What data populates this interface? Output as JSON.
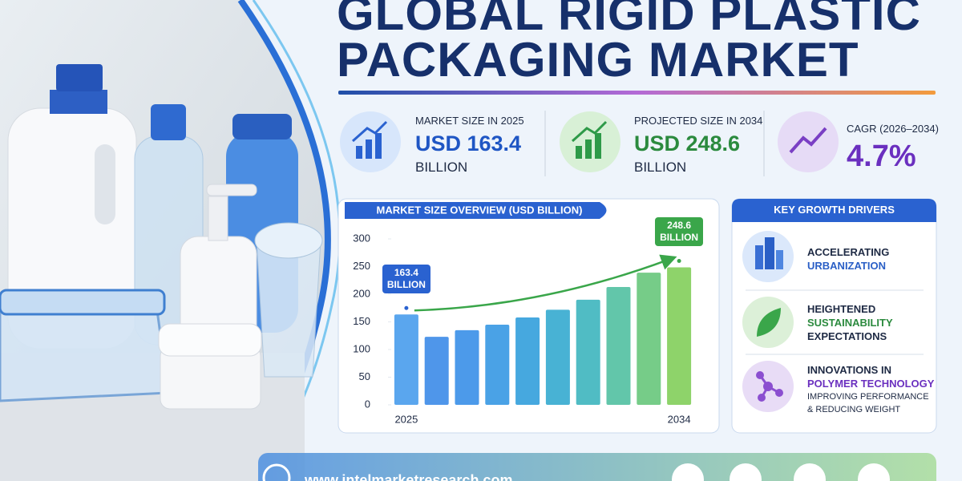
{
  "header": {
    "title_line_1": "GLOBAL RIGID PLASTIC",
    "title_line_2": "PACKAGING MARKET"
  },
  "stats": [
    {
      "label": "MARKET SIZE IN 2025",
      "value": "USD 163.4",
      "unit": "BILLION"
    },
    {
      "label": "PROJECTED SIZE IN 2034",
      "value": "USD 248.6",
      "unit": "BILLION"
    },
    {
      "label": "CAGR (2026–2034)",
      "value": "4.7%"
    }
  ],
  "chart_data": {
    "type": "bar",
    "title": "MARKET SIZE OVERVIEW (USD BILLION)",
    "categories": [
      "2025",
      null,
      null,
      null,
      null,
      null,
      null,
      null,
      null,
      "2034"
    ],
    "values": [
      163.4,
      123,
      135,
      145,
      158,
      172,
      190,
      213,
      239,
      248.6
    ],
    "value_labels": [
      "163.4 BILLION",
      null,
      null,
      null,
      null,
      null,
      null,
      null,
      null,
      "248.6 BILLION"
    ],
    "colors": [
      "#5aa6ee",
      "#4f96ea",
      "#4c9aea",
      "#4aa2e6",
      "#46a8df",
      "#48b2d4",
      "#50bcc4",
      "#62c6aa",
      "#76cc88",
      "#8ed36a"
    ],
    "ylim": [
      0,
      300
    ],
    "yticks": [
      0,
      50,
      100,
      150,
      200,
      250,
      300
    ],
    "grid": false
  },
  "drivers": {
    "title": "KEY GROWTH DRIVERS",
    "items": [
      {
        "line_1": "ACCELERATING",
        "line_2": "URBANIZATION"
      },
      {
        "line_1": "HEIGHTENED",
        "line_2": "SUSTAINABILITY",
        "line_3": "EXPECTATIONS"
      },
      {
        "line_1": "INNOVATIONS IN",
        "line_2": "POLYMER TECHNOLOGY",
        "line_3": "IMPROVING PERFORMANCE",
        "line_4": "& REDUCING WEIGHT"
      }
    ]
  },
  "footer": {
    "website": "www.intelmarketresearch.com"
  }
}
